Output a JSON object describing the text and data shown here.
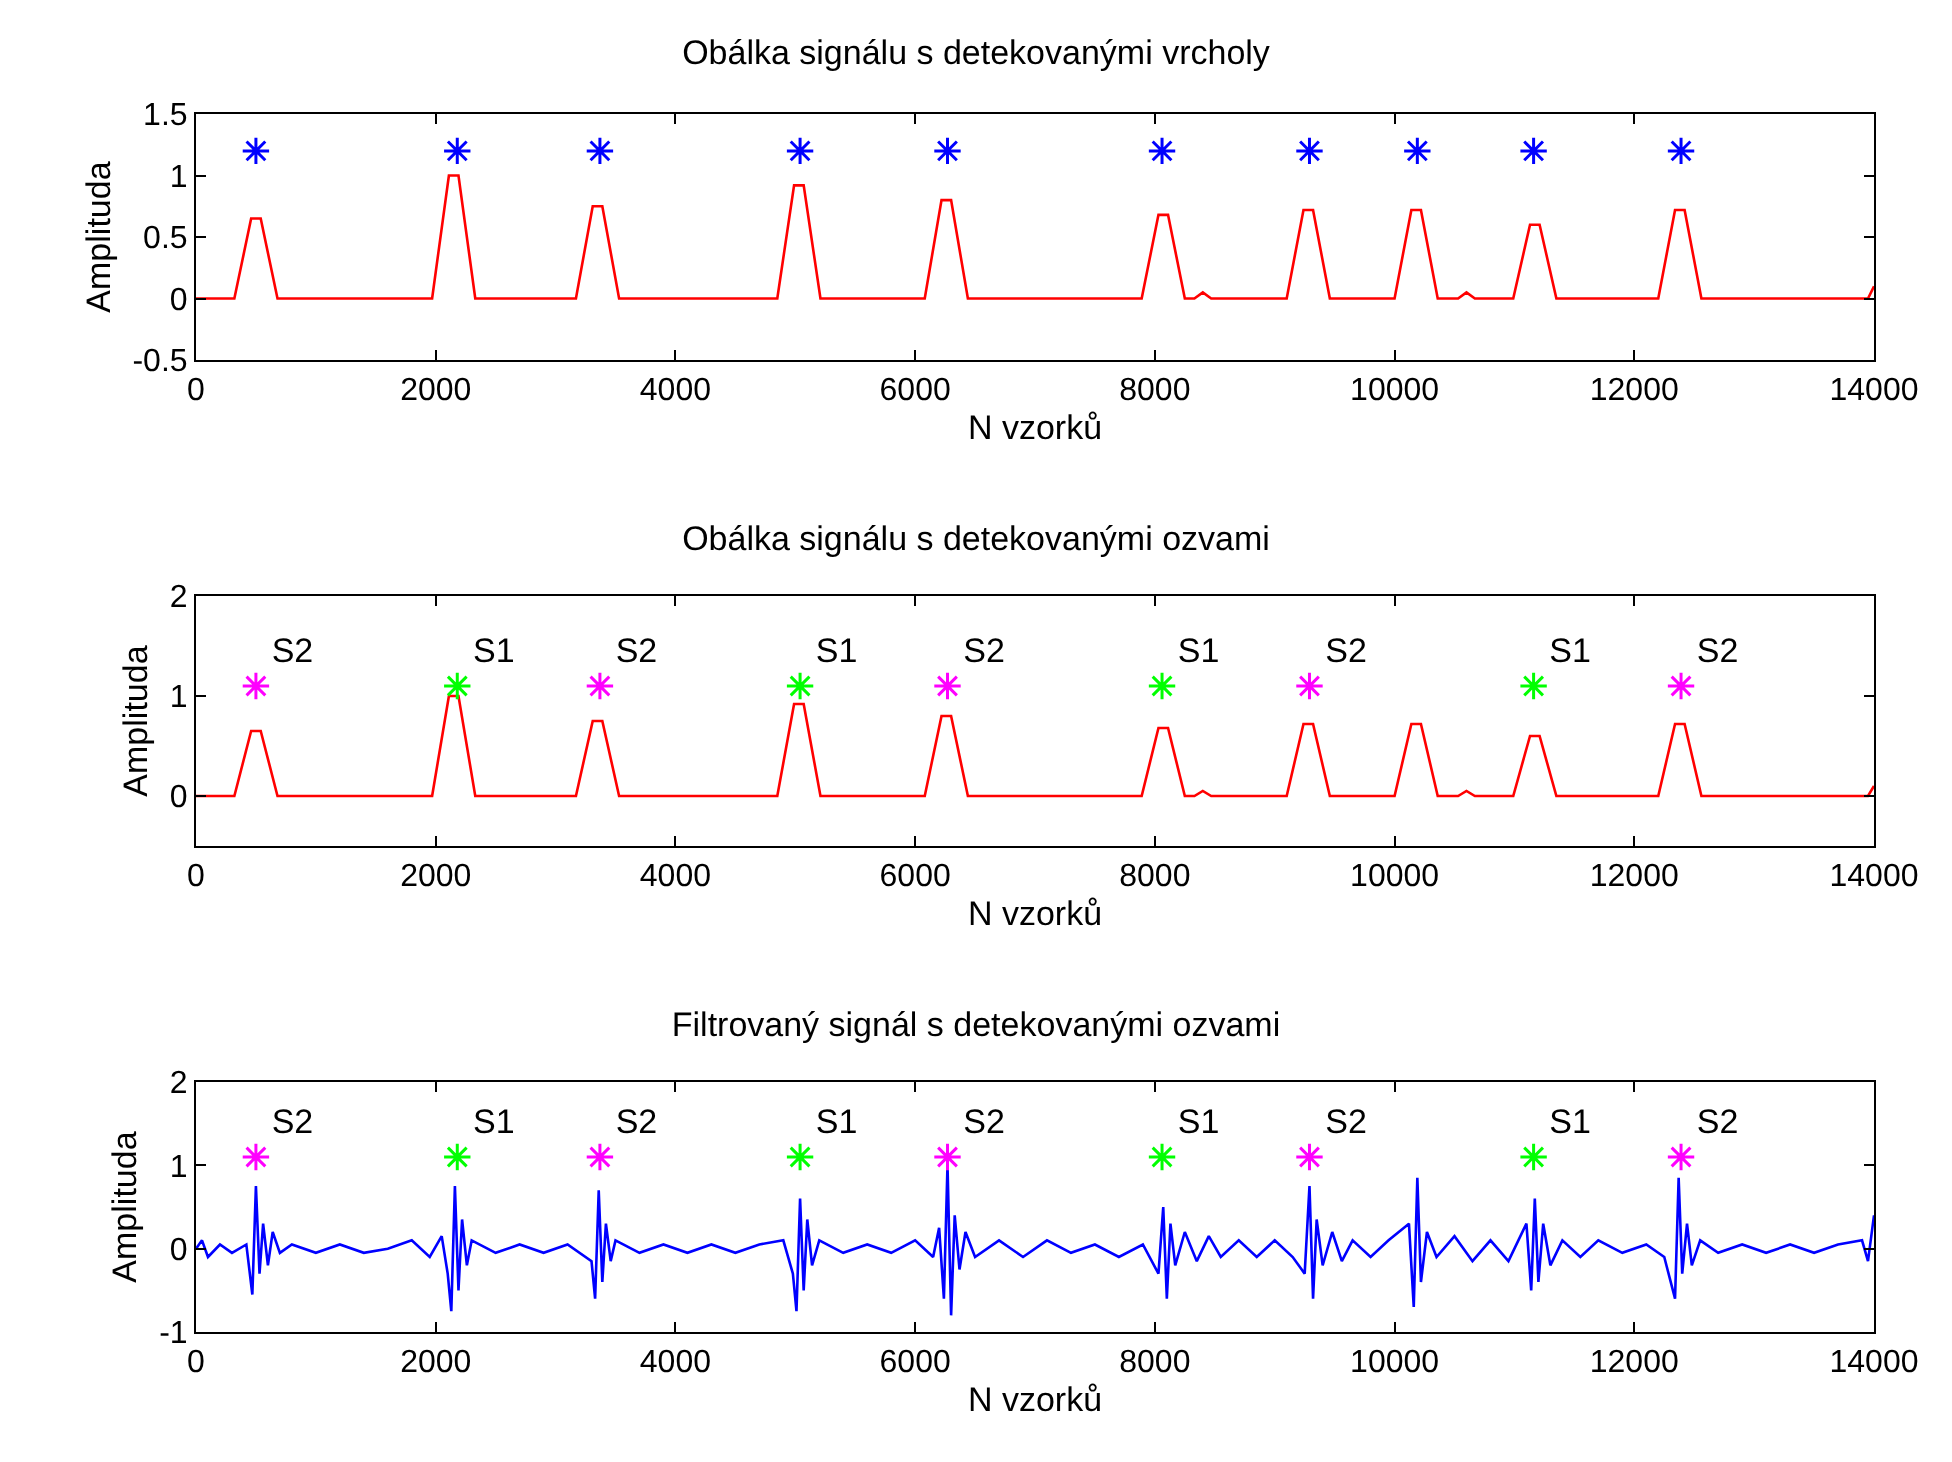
{
  "chart_data": [
    {
      "type": "line",
      "title": "Obálka signálu s detekovanými vrcholy",
      "xlabel": "N vzorků",
      "ylabel": "Amplituda",
      "xlim": [
        0,
        14000
      ],
      "xticks": [
        0,
        2000,
        4000,
        6000,
        8000,
        10000,
        12000,
        14000
      ],
      "ylim": [
        -0.5,
        1.5
      ],
      "yticks": [
        -0.5,
        0,
        0.5,
        1,
        1.5
      ],
      "series": [
        {
          "color": "#ff0000",
          "marker": "none",
          "x": [
            0,
            320,
            460,
            540,
            680,
            1970,
            2110,
            2190,
            2330,
            3170,
            3310,
            3390,
            3530,
            4850,
            4990,
            5070,
            5210,
            6080,
            6220,
            6300,
            6440,
            7890,
            8030,
            8110,
            8250,
            8330,
            8400,
            8470,
            9100,
            9240,
            9320,
            9460,
            10000,
            10140,
            10220,
            10360,
            10530,
            10600,
            10670,
            10990,
            11130,
            11210,
            11350,
            12200,
            12340,
            12420,
            12560,
            13950,
            14000
          ],
          "values": [
            0,
            0,
            0.65,
            0.65,
            0,
            0,
            1,
            1,
            0,
            0,
            0.75,
            0.75,
            0,
            0,
            0.92,
            0.92,
            0,
            0,
            0.8,
            0.8,
            0,
            0,
            0.68,
            0.68,
            0,
            0,
            0.05,
            0,
            0,
            0.72,
            0.72,
            0,
            0,
            0.72,
            0.72,
            0,
            0,
            0.05,
            0,
            0,
            0.6,
            0.6,
            0,
            0,
            0.72,
            0.72,
            0,
            0,
            0.1
          ]
        },
        {
          "type": "scatter",
          "marker": "cross",
          "color": "#0000ff",
          "x": [
            500,
            2180,
            3370,
            5040,
            6270,
            8060,
            9290,
            10190,
            11160,
            12390
          ],
          "values": [
            1.2,
            1.2,
            1.2,
            1.2,
            1.2,
            1.2,
            1.2,
            1.2,
            1.2,
            1.2
          ]
        }
      ]
    },
    {
      "type": "line",
      "title": "Obálka signálu s detekovanými ozvami",
      "xlabel": "N vzorků",
      "ylabel": "Amplituda",
      "xlim": [
        0,
        14000
      ],
      "xticks": [
        0,
        2000,
        4000,
        6000,
        8000,
        10000,
        12000,
        14000
      ],
      "ylim": [
        -0.5,
        2
      ],
      "yticks": [
        0,
        1,
        2
      ],
      "series": [
        {
          "color": "#ff0000",
          "marker": "none",
          "x": [
            0,
            320,
            460,
            540,
            680,
            1970,
            2110,
            2190,
            2330,
            3170,
            3310,
            3390,
            3530,
            4850,
            4990,
            5070,
            5210,
            6080,
            6220,
            6300,
            6440,
            7890,
            8030,
            8110,
            8250,
            8330,
            8400,
            8470,
            9100,
            9240,
            9320,
            9460,
            10000,
            10140,
            10220,
            10360,
            10530,
            10600,
            10670,
            10990,
            11130,
            11210,
            11350,
            12200,
            12340,
            12420,
            12560,
            13950,
            14000
          ],
          "values": [
            0,
            0,
            0.65,
            0.65,
            0,
            0,
            1,
            1,
            0,
            0,
            0.75,
            0.75,
            0,
            0,
            0.92,
            0.92,
            0,
            0,
            0.8,
            0.8,
            0,
            0,
            0.68,
            0.68,
            0,
            0,
            0.05,
            0,
            0,
            0.72,
            0.72,
            0,
            0,
            0.72,
            0.72,
            0,
            0,
            0.05,
            0,
            0,
            0.6,
            0.6,
            0,
            0,
            0.72,
            0.72,
            0,
            0,
            0.1
          ]
        },
        {
          "type": "scatter",
          "marker": "cross",
          "name": "S1",
          "color": "#00ff00",
          "x": [
            2180,
            5040,
            8060,
            11160
          ],
          "values": [
            1.1,
            1.1,
            1.1,
            1.1
          ]
        },
        {
          "type": "scatter",
          "marker": "cross",
          "name": "S2",
          "color": "#ff00ff",
          "x": [
            500,
            3370,
            6270,
            9290,
            12390
          ],
          "values": [
            1.1,
            1.1,
            1.1,
            1.1,
            1.1
          ]
        }
      ]
    },
    {
      "type": "line",
      "title": "Filtrovaný signál s detekovanými ozvami",
      "xlabel": "N vzorků",
      "ylabel": "Amplituda",
      "xlim": [
        0,
        14000
      ],
      "xticks": [
        0,
        2000,
        4000,
        6000,
        8000,
        10000,
        12000,
        14000
      ],
      "ylim": [
        -1,
        2
      ],
      "yticks": [
        -1,
        0,
        1,
        2
      ],
      "series": [
        {
          "color": "#0000ff",
          "marker": "none",
          "x": [
            0,
            50,
            100,
            200,
            300,
            420,
            470,
            500,
            530,
            560,
            600,
            640,
            700,
            800,
            1000,
            1200,
            1400,
            1600,
            1800,
            1950,
            2050,
            2100,
            2130,
            2160,
            2190,
            2220,
            2260,
            2300,
            2500,
            2700,
            2900,
            3100,
            3300,
            3330,
            3360,
            3390,
            3420,
            3460,
            3500,
            3700,
            3900,
            4100,
            4300,
            4500,
            4700,
            4900,
            4980,
            5010,
            5040,
            5070,
            5100,
            5140,
            5200,
            5400,
            5600,
            5800,
            6000,
            6150,
            6200,
            6240,
            6270,
            6300,
            6330,
            6370,
            6420,
            6500,
            6700,
            6900,
            7100,
            7300,
            7500,
            7700,
            7900,
            8030,
            8070,
            8100,
            8130,
            8170,
            8250,
            8350,
            8450,
            8550,
            8700,
            8850,
            9000,
            9150,
            9250,
            9290,
            9320,
            9350,
            9400,
            9480,
            9560,
            9650,
            9800,
            9950,
            10120,
            10160,
            10190,
            10220,
            10270,
            10350,
            10500,
            10650,
            10800,
            10950,
            11100,
            11140,
            11170,
            11200,
            11240,
            11300,
            11400,
            11550,
            11700,
            11900,
            12100,
            12250,
            12340,
            12370,
            12400,
            12440,
            12480,
            12550,
            12700,
            12900,
            13100,
            13300,
            13500,
            13700,
            13900,
            13950,
            14000
          ],
          "values": [
            0,
            0.1,
            -0.1,
            0.05,
            -0.05,
            0.05,
            -0.55,
            0.75,
            -0.3,
            0.3,
            -0.2,
            0.2,
            -0.05,
            0.05,
            -0.05,
            0.05,
            -0.05,
            0,
            0.1,
            -0.1,
            0.15,
            -0.3,
            -0.75,
            0.75,
            -0.5,
            0.35,
            -0.2,
            0.1,
            -0.05,
            0.05,
            -0.05,
            0.05,
            -0.15,
            -0.6,
            0.7,
            -0.4,
            0.3,
            -0.15,
            0.1,
            -0.05,
            0.05,
            -0.05,
            0.05,
            -0.05,
            0.05,
            0.1,
            -0.3,
            -0.75,
            0.6,
            -0.5,
            0.35,
            -0.2,
            0.1,
            -0.05,
            0.05,
            -0.05,
            0.1,
            -0.1,
            0.25,
            -0.6,
            1,
            -0.8,
            0.4,
            -0.25,
            0.2,
            -0.1,
            0.1,
            -0.1,
            0.1,
            -0.05,
            0.05,
            -0.1,
            0.05,
            -0.3,
            0.5,
            -0.6,
            0.3,
            -0.2,
            0.2,
            -0.15,
            0.15,
            -0.1,
            0.1,
            -0.1,
            0.1,
            -0.1,
            -0.3,
            0.75,
            -0.6,
            0.35,
            -0.2,
            0.2,
            -0.15,
            0.1,
            -0.1,
            0.1,
            0.3,
            -0.7,
            0.85,
            -0.4,
            0.2,
            -0.1,
            0.15,
            -0.15,
            0.1,
            -0.15,
            0.3,
            -0.5,
            0.6,
            -0.4,
            0.3,
            -0.2,
            0.1,
            -0.1,
            0.1,
            -0.05,
            0.05,
            -0.1,
            -0.6,
            0.85,
            -0.3,
            0.3,
            -0.2,
            0.1,
            -0.05,
            0.05,
            -0.05,
            0.05,
            -0.05,
            0.05,
            0.1,
            -0.15,
            0.4
          ]
        },
        {
          "type": "scatter",
          "marker": "cross",
          "name": "S1",
          "color": "#00ff00",
          "x": [
            2180,
            5040,
            8060,
            11160
          ],
          "values": [
            1.1,
            1.1,
            1.1,
            1.1
          ]
        },
        {
          "type": "scatter",
          "marker": "cross",
          "name": "S2",
          "color": "#ff00ff",
          "x": [
            500,
            3370,
            6270,
            9290,
            12390
          ],
          "values": [
            1.1,
            1.1,
            1.1,
            1.1,
            1.1
          ]
        }
      ]
    }
  ]
}
